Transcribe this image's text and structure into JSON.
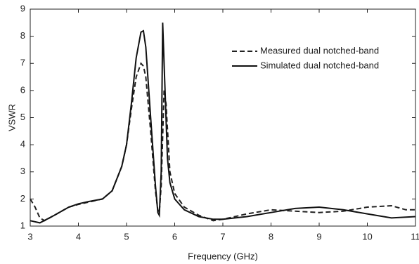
{
  "chart_data": {
    "type": "line",
    "x_label": "Frequency (GHz)",
    "y_label": "VSWR",
    "xlim": [
      3,
      11
    ],
    "ylim": [
      1,
      9
    ],
    "xticks": [
      3,
      4,
      5,
      6,
      7,
      8,
      9,
      10,
      11
    ],
    "yticks": [
      1,
      2,
      3,
      4,
      5,
      6,
      7,
      8,
      9
    ],
    "legend": "upper right",
    "series": [
      {
        "name": "Measured dual notched-band",
        "color": "#222222",
        "dash": "dashed",
        "x": [
          3,
          3.1,
          3.2,
          3.3,
          3.5,
          3.8,
          4.0,
          4.2,
          4.5,
          4.7,
          4.9,
          5.0,
          5.1,
          5.2,
          5.3,
          5.35,
          5.4,
          5.5,
          5.6,
          5.65,
          5.68,
          5.72,
          5.78,
          5.82,
          5.9,
          6.0,
          6.2,
          6.5,
          6.8,
          7.0,
          7.5,
          8.0,
          8.5,
          9.0,
          9.5,
          10.0,
          10.5,
          10.8,
          11
        ],
        "values": [
          2.0,
          1.7,
          1.3,
          1.2,
          1.4,
          1.7,
          1.8,
          1.88,
          2.0,
          2.3,
          3.2,
          4.0,
          5.3,
          6.5,
          7.0,
          6.9,
          6.5,
          4.5,
          2.3,
          1.6,
          1.5,
          2.5,
          6.0,
          5.5,
          3.0,
          2.2,
          1.7,
          1.4,
          1.2,
          1.25,
          1.45,
          1.6,
          1.55,
          1.5,
          1.55,
          1.7,
          1.75,
          1.6,
          1.6
        ]
      },
      {
        "name": "Simulated dual notched-band",
        "color": "#111111",
        "dash": "solid",
        "x": [
          3,
          3.2,
          3.5,
          3.8,
          4.0,
          4.2,
          4.5,
          4.7,
          4.9,
          5.0,
          5.1,
          5.2,
          5.3,
          5.35,
          5.4,
          5.5,
          5.6,
          5.65,
          5.68,
          5.72,
          5.75,
          5.78,
          5.85,
          5.9,
          6.0,
          6.2,
          6.5,
          6.8,
          7.0,
          7.5,
          8.0,
          8.5,
          9.0,
          9.5,
          10.0,
          10.5,
          11
        ],
        "values": [
          1.2,
          1.12,
          1.4,
          1.7,
          1.82,
          1.9,
          2.0,
          2.3,
          3.2,
          4.0,
          5.5,
          7.2,
          8.15,
          8.2,
          7.6,
          5.0,
          2.5,
          1.5,
          1.4,
          3.0,
          8.5,
          7.0,
          3.5,
          2.6,
          2.0,
          1.6,
          1.35,
          1.25,
          1.25,
          1.35,
          1.5,
          1.65,
          1.7,
          1.6,
          1.45,
          1.3,
          1.35
        ]
      }
    ]
  }
}
